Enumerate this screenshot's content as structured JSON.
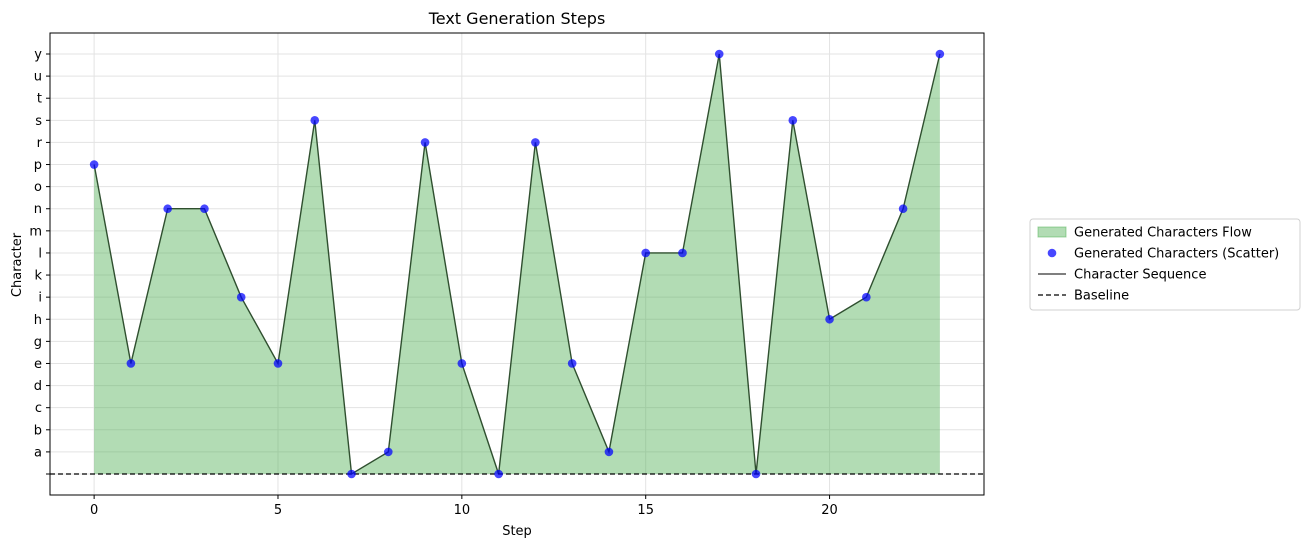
{
  "chart_data": {
    "type": "line",
    "title": "Text Generation Steps",
    "xlabel": "Step",
    "ylabel": "Character",
    "xlim": [
      -1.2,
      24.2
    ],
    "x_ticks": [
      0,
      5,
      10,
      15,
      20
    ],
    "y_categories": [
      " ",
      "a",
      "b",
      "c",
      "d",
      "e",
      "g",
      "h",
      "i",
      "k",
      "l",
      "m",
      "n",
      "o",
      "p",
      "r",
      "s",
      "t",
      "u",
      "y"
    ],
    "x": [
      0,
      1,
      2,
      3,
      4,
      5,
      6,
      7,
      8,
      9,
      10,
      11,
      12,
      13,
      14,
      15,
      16,
      17,
      18,
      19,
      20,
      21,
      22,
      23
    ],
    "characters": [
      "p",
      "e",
      "n",
      "n",
      "i",
      "e",
      "s",
      " ",
      "a",
      "r",
      "e",
      " ",
      "r",
      "e",
      "a",
      "l",
      "l",
      "y",
      " ",
      "s",
      "h",
      "i",
      "n",
      "y"
    ],
    "baseline": " ",
    "grid": true,
    "legend_position": "right",
    "series": [
      {
        "name": "Generated Characters Flow",
        "kind": "area",
        "color": "#4caf50"
      },
      {
        "name": "Generated Characters (Scatter)",
        "kind": "scatter",
        "color": "#0000ff"
      },
      {
        "name": "Character Sequence",
        "kind": "line",
        "color": "#555555"
      },
      {
        "name": "Baseline",
        "kind": "dashed-line",
        "color": "#000000"
      }
    ]
  }
}
